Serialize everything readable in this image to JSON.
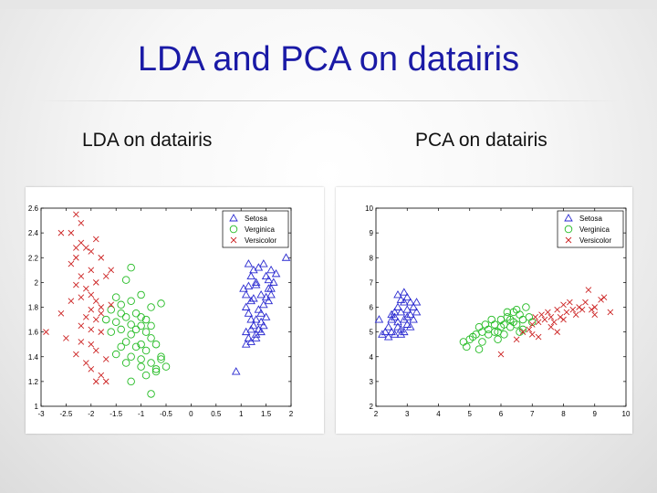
{
  "slide": {
    "title": "LDA and PCA on datairis",
    "left_subtitle": "LDA on datairis",
    "right_subtitle": "PCA on datairis"
  },
  "colors": {
    "setosa": "#2a2ad0",
    "verginica": "#22bb22",
    "versicolor": "#cc2222",
    "title": "#1a1aa6"
  },
  "chart_data": [
    {
      "type": "scatter",
      "title": "",
      "xlabel": "",
      "ylabel": "",
      "xlim": [
        -3,
        2
      ],
      "ylim": [
        1,
        2.6
      ],
      "xticks": [
        -3,
        -2.5,
        -2,
        -1.5,
        -1,
        -0.5,
        0,
        0.5,
        1,
        1.5,
        2
      ],
      "yticks": [
        1,
        1.2,
        1.4,
        1.6,
        1.8,
        2,
        2.2,
        2.4,
        2.6
      ],
      "grid": false,
      "legend_position": "top-right",
      "series": [
        {
          "name": "Setosa",
          "marker": "triangle",
          "points": [
            [
              1.05,
              1.95
            ],
            [
              1.1,
              1.9
            ],
            [
              1.15,
              1.97
            ],
            [
              1.2,
              2.05
            ],
            [
              1.25,
              1.87
            ],
            [
              1.3,
              2.0
            ],
            [
              1.35,
              1.78
            ],
            [
              1.4,
              1.9
            ],
            [
              1.45,
              1.82
            ],
            [
              1.5,
              2.05
            ],
            [
              1.55,
              1.95
            ],
            [
              1.6,
              1.9
            ],
            [
              1.65,
              2.0
            ],
            [
              1.7,
              2.07
            ],
            [
              1.45,
              2.15
            ],
            [
              1.35,
              2.12
            ],
            [
              1.25,
              2.1
            ],
            [
              1.15,
              2.15
            ],
            [
              1.3,
              1.98
            ],
            [
              1.4,
              1.75
            ],
            [
              1.2,
              1.7
            ],
            [
              1.25,
              1.65
            ],
            [
              1.1,
              1.6
            ],
            [
              1.15,
              1.55
            ],
            [
              1.2,
              1.52
            ],
            [
              1.3,
              1.58
            ],
            [
              1.35,
              1.62
            ],
            [
              1.45,
              1.65
            ],
            [
              1.5,
              1.72
            ],
            [
              1.55,
              1.85
            ],
            [
              1.6,
              1.95
            ],
            [
              1.1,
              1.8
            ],
            [
              1.15,
              1.75
            ],
            [
              1.2,
              1.85
            ],
            [
              1.3,
              1.55
            ],
            [
              1.4,
              1.6
            ],
            [
              1.5,
              1.88
            ],
            [
              1.55,
              2.02
            ],
            [
              1.6,
              2.1
            ],
            [
              1.9,
              2.2
            ],
            [
              0.9,
              1.28
            ],
            [
              1.1,
              1.5
            ],
            [
              1.2,
              1.62
            ],
            [
              1.3,
              1.7
            ],
            [
              1.4,
              1.68
            ]
          ]
        },
        {
          "name": "Verginica",
          "marker": "circle",
          "points": [
            [
              -1.2,
              2.12
            ],
            [
              -1.3,
              2.02
            ],
            [
              -1.5,
              1.88
            ],
            [
              -1.4,
              1.82
            ],
            [
              -1.2,
              1.85
            ],
            [
              -1.0,
              1.9
            ],
            [
              -0.6,
              1.83
            ],
            [
              -0.8,
              1.8
            ],
            [
              -1.1,
              1.75
            ],
            [
              -1.3,
              1.72
            ],
            [
              -1.5,
              1.68
            ],
            [
              -1.7,
              1.7
            ],
            [
              -1.6,
              1.6
            ],
            [
              -1.4,
              1.62
            ],
            [
              -1.2,
              1.58
            ],
            [
              -1.0,
              1.65
            ],
            [
              -0.9,
              1.6
            ],
            [
              -0.8,
              1.55
            ],
            [
              -0.7,
              1.5
            ],
            [
              -0.9,
              1.45
            ],
            [
              -1.1,
              1.48
            ],
            [
              -1.3,
              1.52
            ],
            [
              -1.5,
              1.42
            ],
            [
              -1.2,
              1.4
            ],
            [
              -1.0,
              1.38
            ],
            [
              -0.8,
              1.35
            ],
            [
              -0.6,
              1.38
            ],
            [
              -0.5,
              1.32
            ],
            [
              -0.7,
              1.3
            ],
            [
              -1.0,
              1.32
            ],
            [
              -1.3,
              1.35
            ],
            [
              -1.2,
              1.2
            ],
            [
              -0.9,
              1.25
            ],
            [
              -0.7,
              1.28
            ],
            [
              -0.8,
              1.1
            ],
            [
              -1.1,
              1.62
            ],
            [
              -1.0,
              1.72
            ],
            [
              -1.4,
              1.75
            ],
            [
              -1.6,
              1.78
            ],
            [
              -0.9,
              1.7
            ],
            [
              -1.2,
              1.66
            ],
            [
              -0.8,
              1.65
            ],
            [
              -1.0,
              1.5
            ],
            [
              -1.4,
              1.48
            ],
            [
              -0.6,
              1.4
            ]
          ]
        },
        {
          "name": "Versicolor",
          "marker": "x",
          "points": [
            [
              -2.3,
              2.55
            ],
            [
              -2.2,
              2.48
            ],
            [
              -2.4,
              2.4
            ],
            [
              -2.6,
              2.4
            ],
            [
              -2.2,
              2.32
            ],
            [
              -2.1,
              2.28
            ],
            [
              -1.9,
              2.35
            ],
            [
              -2.3,
              2.28
            ],
            [
              -2.0,
              2.25
            ],
            [
              -1.8,
              2.2
            ],
            [
              -2.3,
              2.2
            ],
            [
              -2.4,
              2.15
            ],
            [
              -2.0,
              2.1
            ],
            [
              -2.2,
              2.05
            ],
            [
              -1.9,
              2.0
            ],
            [
              -1.7,
              2.05
            ],
            [
              -1.6,
              2.1
            ],
            [
              -2.3,
              1.98
            ],
            [
              -2.1,
              1.95
            ],
            [
              -2.0,
              1.9
            ],
            [
              -2.2,
              1.88
            ],
            [
              -1.9,
              1.85
            ],
            [
              -2.4,
              1.85
            ],
            [
              -1.8,
              1.8
            ],
            [
              -2.0,
              1.78
            ],
            [
              -1.8,
              1.75
            ],
            [
              -1.6,
              1.82
            ],
            [
              -2.1,
              1.72
            ],
            [
              -1.9,
              1.7
            ],
            [
              -2.2,
              1.65
            ],
            [
              -2.0,
              1.62
            ],
            [
              -1.8,
              1.6
            ],
            [
              -2.5,
              1.55
            ],
            [
              -2.2,
              1.52
            ],
            [
              -2.0,
              1.5
            ],
            [
              -1.9,
              1.45
            ],
            [
              -2.3,
              1.42
            ],
            [
              -1.7,
              1.38
            ],
            [
              -2.1,
              1.35
            ],
            [
              -2.0,
              1.3
            ],
            [
              -1.8,
              1.25
            ],
            [
              -1.7,
              1.2
            ],
            [
              -1.9,
              1.2
            ],
            [
              -2.9,
              1.6
            ],
            [
              -2.6,
              1.75
            ]
          ]
        }
      ]
    },
    {
      "type": "scatter",
      "title": "",
      "xlabel": "",
      "ylabel": "",
      "xlim": [
        2,
        10
      ],
      "ylim": [
        2,
        10
      ],
      "xticks": [
        2,
        3,
        4,
        5,
        6,
        7,
        8,
        9,
        10
      ],
      "yticks": [
        2,
        3,
        4,
        5,
        6,
        7,
        8,
        9,
        10
      ],
      "grid": false,
      "legend_position": "top-right",
      "series": [
        {
          "name": "Setosa",
          "marker": "triangle",
          "points": [
            [
              2.7,
              6.5
            ],
            [
              2.9,
              6.6
            ],
            [
              3.1,
              6.2
            ],
            [
              3.2,
              6.0
            ],
            [
              3.0,
              5.9
            ],
            [
              2.8,
              5.8
            ],
            [
              2.6,
              5.6
            ],
            [
              2.5,
              5.5
            ],
            [
              2.7,
              5.4
            ],
            [
              2.9,
              5.5
            ],
            [
              3.1,
              5.7
            ],
            [
              3.3,
              5.8
            ],
            [
              2.4,
              5.2
            ],
            [
              2.5,
              5.0
            ],
            [
              2.6,
              4.9
            ],
            [
              2.8,
              5.1
            ],
            [
              3.0,
              5.3
            ],
            [
              3.2,
              5.5
            ],
            [
              2.9,
              6.2
            ],
            [
              2.7,
              6.0
            ],
            [
              2.6,
              5.8
            ],
            [
              2.4,
              4.8
            ],
            [
              2.8,
              4.9
            ],
            [
              3.1,
              5.2
            ],
            [
              3.3,
              6.2
            ],
            [
              3.0,
              6.4
            ],
            [
              2.5,
              5.7
            ],
            [
              2.3,
              5.0
            ],
            [
              2.2,
              4.9
            ],
            [
              2.1,
              5.5
            ],
            [
              2.7,
              5.2
            ],
            [
              2.9,
              5.0
            ],
            [
              3.0,
              5.6
            ],
            [
              2.8,
              6.3
            ]
          ]
        },
        {
          "name": "Verginica",
          "marker": "circle",
          "points": [
            [
              6.8,
              6.0
            ],
            [
              6.5,
              5.9
            ],
            [
              6.7,
              5.5
            ],
            [
              6.4,
              5.4
            ],
            [
              6.2,
              5.6
            ],
            [
              6.0,
              5.2
            ],
            [
              5.8,
              5.3
            ],
            [
              5.6,
              5.1
            ],
            [
              5.4,
              5.0
            ],
            [
              5.2,
              4.9
            ],
            [
              5.0,
              4.7
            ],
            [
              4.8,
              4.6
            ],
            [
              5.9,
              5.0
            ],
            [
              6.1,
              4.9
            ],
            [
              6.3,
              5.2
            ],
            [
              6.5,
              5.3
            ],
            [
              6.6,
              5.7
            ],
            [
              6.9,
              5.6
            ],
            [
              6.2,
              5.8
            ],
            [
              5.7,
              5.5
            ],
            [
              5.5,
              5.3
            ],
            [
              5.3,
              5.2
            ],
            [
              6.0,
              5.5
            ],
            [
              6.4,
              5.8
            ],
            [
              6.7,
              5.1
            ],
            [
              7.0,
              5.4
            ],
            [
              5.1,
              4.8
            ],
            [
              4.9,
              4.4
            ],
            [
              5.3,
              4.3
            ],
            [
              5.6,
              4.9
            ],
            [
              5.8,
              5.0
            ],
            [
              6.1,
              5.3
            ],
            [
              6.3,
              5.5
            ],
            [
              5.4,
              4.6
            ],
            [
              5.9,
              4.7
            ],
            [
              6.6,
              5.0
            ]
          ]
        },
        {
          "name": "Versicolor",
          "marker": "x",
          "points": [
            [
              8.8,
              6.7
            ],
            [
              9.3,
              6.4
            ],
            [
              9.5,
              5.8
            ],
            [
              8.7,
              6.2
            ],
            [
              8.5,
              6.0
            ],
            [
              8.3,
              5.9
            ],
            [
              8.0,
              6.1
            ],
            [
              7.8,
              5.9
            ],
            [
              7.6,
              5.6
            ],
            [
              7.4,
              5.5
            ],
            [
              7.2,
              5.4
            ],
            [
              7.0,
              5.3
            ],
            [
              7.7,
              5.4
            ],
            [
              7.9,
              5.6
            ],
            [
              8.1,
              5.8
            ],
            [
              8.4,
              5.7
            ],
            [
              8.6,
              5.9
            ],
            [
              9.0,
              6.0
            ],
            [
              9.2,
              6.3
            ],
            [
              7.5,
              5.8
            ],
            [
              7.3,
              5.7
            ],
            [
              7.1,
              5.6
            ],
            [
              6.9,
              5.1
            ],
            [
              7.0,
              4.9
            ],
            [
              7.2,
              4.8
            ],
            [
              6.7,
              5.0
            ],
            [
              6.5,
              4.7
            ],
            [
              6.0,
              4.1
            ],
            [
              8.2,
              6.2
            ],
            [
              8.9,
              5.9
            ],
            [
              7.6,
              5.2
            ],
            [
              7.8,
              5.0
            ],
            [
              8.0,
              5.5
            ],
            [
              9.0,
              5.7
            ]
          ]
        }
      ]
    }
  ]
}
